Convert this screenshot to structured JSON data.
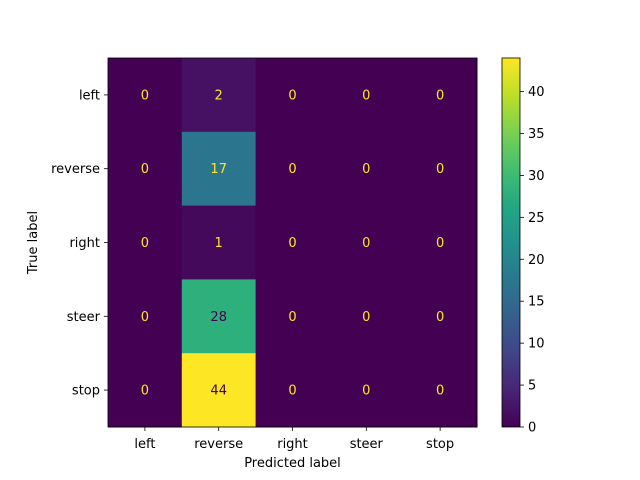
{
  "chart_data": {
    "type": "heatmap",
    "title": "",
    "xlabel": "Predicted label",
    "ylabel": "True label",
    "x_categories": [
      "left",
      "reverse",
      "right",
      "steer",
      "stop"
    ],
    "y_categories": [
      "left",
      "reverse",
      "right",
      "steer",
      "stop"
    ],
    "values": [
      [
        0,
        2,
        0,
        0,
        0
      ],
      [
        0,
        17,
        0,
        0,
        0
      ],
      [
        0,
        1,
        0,
        0,
        0
      ],
      [
        0,
        28,
        0,
        0,
        0
      ],
      [
        0,
        44,
        0,
        0,
        0
      ]
    ],
    "colormap": "viridis",
    "colorbar": {
      "min": 0,
      "max": 44,
      "ticks": [
        0,
        5,
        10,
        15,
        20,
        25,
        30,
        35,
        40
      ]
    },
    "grid": false,
    "legend": "colorbar-right"
  }
}
